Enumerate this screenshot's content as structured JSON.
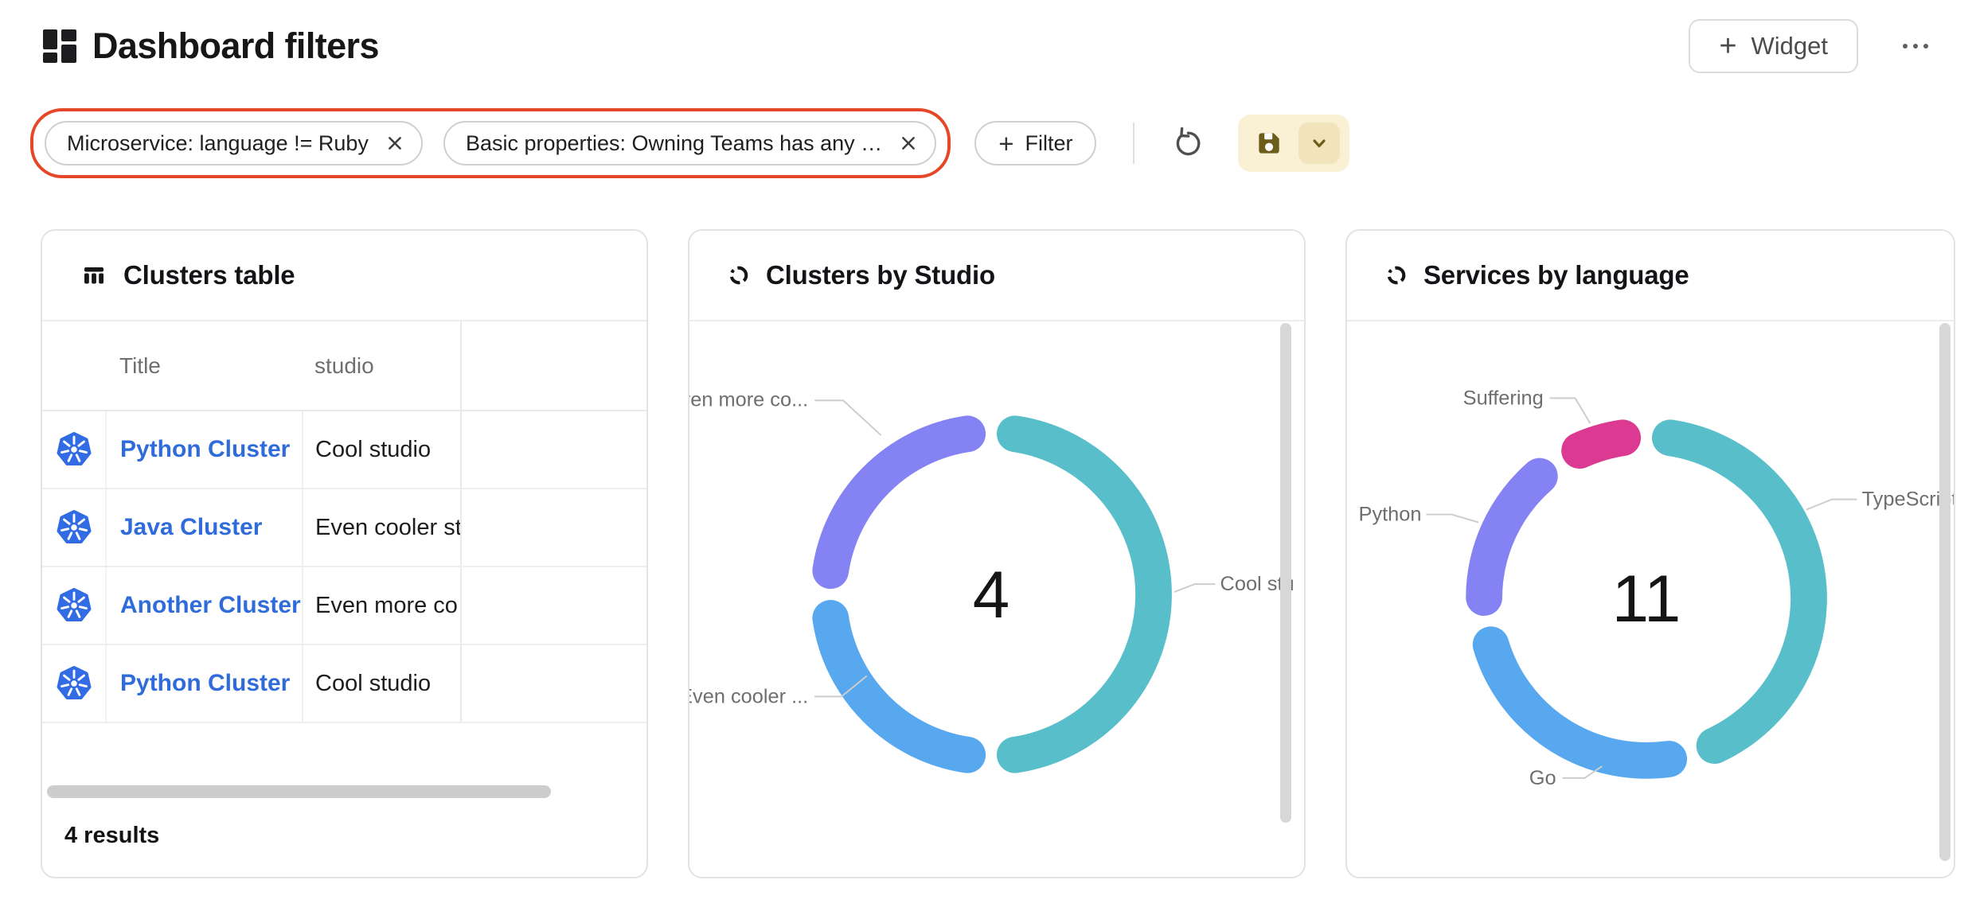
{
  "header": {
    "title": "Dashboard filters",
    "widget_button_label": "Widget"
  },
  "filters": {
    "chips": [
      {
        "label": "Microservice: language != Ruby"
      },
      {
        "label": "Basic properties: Owning Teams has any …"
      }
    ],
    "add_button_label": "Filter"
  },
  "table_card": {
    "title": "Clusters table",
    "columns": [
      "Title",
      "studio"
    ],
    "rows": [
      {
        "title": "Python Cluster",
        "studio": "Cool studio"
      },
      {
        "title": "Java Cluster",
        "studio": "Even cooler st"
      },
      {
        "title": "Another Cluster",
        "studio": "Even more co"
      },
      {
        "title": "Python Cluster",
        "studio": "Cool studio"
      }
    ],
    "results_text": "4 results"
  },
  "chart_data": [
    {
      "type": "pie",
      "subtype": "donut",
      "title": "Clusters by Studio",
      "labels": [
        "Cool stu",
        "Even cooler ...",
        "Even more co..."
      ],
      "values": [
        2,
        1,
        1
      ],
      "center_total": "4",
      "colors": [
        "#58bfca",
        "#58a8f0",
        "#8583f3"
      ],
      "legend_position": "none"
    },
    {
      "type": "pie",
      "subtype": "donut",
      "title": "Services by language",
      "labels": [
        "TypeScript",
        "Go",
        "Python",
        "Suffering"
      ],
      "values": [
        5,
        3,
        2,
        1
      ],
      "center_total": "11",
      "colors": [
        "#58bfca",
        "#58a8f0",
        "#8583f3",
        "#dc3a92"
      ],
      "legend_position": "none"
    }
  ],
  "colors": {
    "filter_highlight": "#e64727",
    "save_bg": "#faf1d4",
    "save_accent": "#6d5d1a",
    "link": "#2f6bdb",
    "kubernetes_blue": "#326ce5",
    "chart_label_gray": "#6e6e6e"
  }
}
